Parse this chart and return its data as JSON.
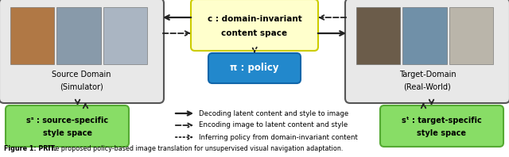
{
  "bg_color": "#ffffff",
  "figure_caption_bold": "Figure 1: PRIT.",
  "figure_caption_rest": " The proposed policy-based image translation for unsupervised visual navigation adaptation.",
  "source_box": {
    "label_line1": "Source Domain",
    "label_line2": "(Simulator)",
    "img_colors": [
      "#b8845a",
      "#8899aa",
      "#aabbcc"
    ]
  },
  "target_box": {
    "label_line1": "Target-Domain",
    "label_line2": "(Real-World)",
    "img_colors": [
      "#6b5c4a",
      "#7a8fa0",
      "#c8c0b0"
    ]
  },
  "content_box": {
    "label_line1": "c : domain-invariant",
    "label_line2": "content space",
    "facecolor": "#ffffcc",
    "edgecolor": "#cccc00"
  },
  "policy_box": {
    "label": "π : policy",
    "facecolor": "#2288cc",
    "edgecolor": "#1166aa",
    "label_color": "#ffffff"
  },
  "style_source_box": {
    "label_line1": "sˢ : source-specific",
    "label_line2": "style space",
    "facecolor": "#88dd66",
    "edgecolor": "#55aa33"
  },
  "style_target_box": {
    "label_line1": "sᵗ : target-specific",
    "label_line2": "style space",
    "facecolor": "#88dd66",
    "edgecolor": "#55aa33"
  },
  "legend_solid_text": "Decoding latent content and style to image",
  "legend_dashed_text": "Encoding image to latent content and style",
  "legend_dotted_text": "Inferring policy from domain-invariant content",
  "arrow_color": "#222222"
}
